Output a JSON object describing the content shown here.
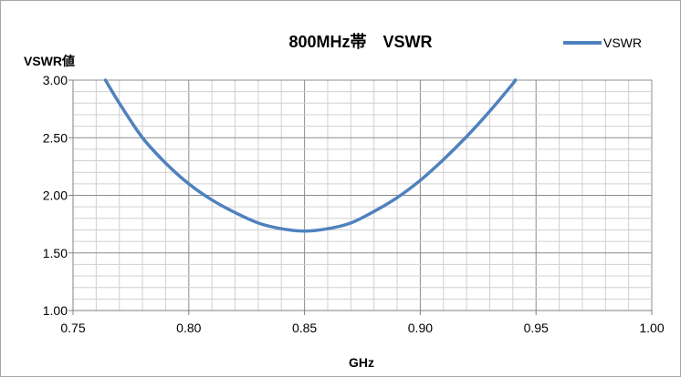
{
  "chart_data": {
    "type": "line",
    "title": "800MHz帯　VSWR",
    "xlabel": "GHz",
    "ylabel": "VSWR値",
    "xlim": [
      0.75,
      1.0
    ],
    "ylim": [
      1.0,
      3.0
    ],
    "x_ticks": [
      "0.75",
      "0.80",
      "0.85",
      "0.90",
      "0.95",
      "1.00"
    ],
    "y_ticks": [
      "1.00",
      "1.50",
      "2.00",
      "2.50",
      "3.00"
    ],
    "x_tick_values": [
      0.75,
      0.8,
      0.85,
      0.9,
      0.95,
      1.0
    ],
    "y_tick_values": [
      1.0,
      1.5,
      2.0,
      2.5,
      3.0
    ],
    "grid": true,
    "legend_position": "top-right",
    "series": [
      {
        "name": "VSWR",
        "color": "#4f81bd",
        "x": [
          0.764,
          0.77,
          0.78,
          0.79,
          0.8,
          0.81,
          0.82,
          0.83,
          0.84,
          0.85,
          0.86,
          0.87,
          0.88,
          0.89,
          0.9,
          0.91,
          0.92,
          0.93,
          0.94,
          0.941
        ],
        "y": [
          3.0,
          2.8,
          2.5,
          2.28,
          2.1,
          1.96,
          1.85,
          1.76,
          1.71,
          1.69,
          1.71,
          1.76,
          1.86,
          1.98,
          2.13,
          2.31,
          2.51,
          2.73,
          2.97,
          3.0
        ]
      }
    ]
  }
}
